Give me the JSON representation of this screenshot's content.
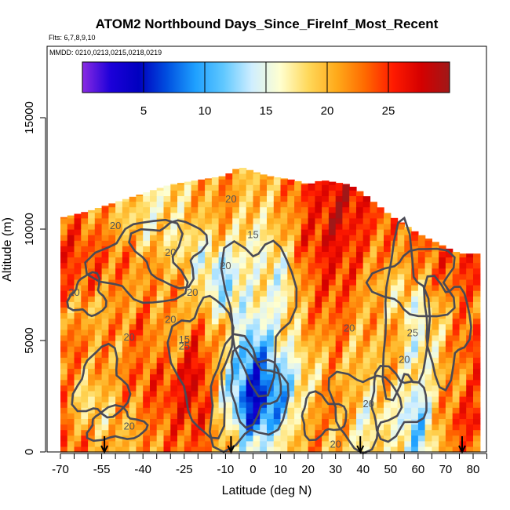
{
  "chart_data": {
    "type": "heatmap",
    "title": "ATOM2 Northbound Days_Since_FireInf_Most_Recent",
    "flights_label": "Flts: 6,7,8,9,10",
    "dates_label": "MMDD: 0210,0213,0215,0218,0219",
    "xlabel": "Latitude (deg N)",
    "ylabel": "Altitude (m)",
    "xlim": [
      -72,
      84
    ],
    "ylim": [
      0,
      17500
    ],
    "x_ticks": [
      "-70",
      "-55",
      "-40",
      "-25",
      "-10",
      "0",
      "10",
      "20",
      "30",
      "40",
      "50",
      "60",
      "70",
      "80"
    ],
    "x_ticks_values": [
      -70,
      -55,
      -40,
      -25,
      -10,
      0,
      10,
      20,
      30,
      40,
      50,
      60,
      70,
      80
    ],
    "y_ticks": [
      "0",
      "5000",
      "10000",
      "15000"
    ],
    "y_ticks_values": [
      0,
      5000,
      10000,
      15000
    ],
    "colorbar": {
      "range": [
        0,
        30
      ],
      "ticks": [
        "5",
        "10",
        "15",
        "20",
        "25"
      ],
      "tick_values": [
        5,
        10,
        15,
        20,
        25
      ],
      "colors": [
        "#8a2be2",
        "#1c00d9",
        "#0000bf",
        "#0050e0",
        "#1ea0ff",
        "#60c8ff",
        "#cfeeff",
        "#ffffd0",
        "#ffd85a",
        "#ffaa1a",
        "#ff6a00",
        "#ff1a00",
        "#d40000",
        "#a01818"
      ]
    },
    "contour_labels": [
      "20",
      "15",
      "20",
      "20",
      "20",
      "20",
      "25",
      "20",
      "15",
      "20",
      "20",
      "20",
      "25",
      "20",
      "20",
      "20",
      "20"
    ],
    "profile_markers_lat": [
      -54,
      -8,
      39,
      76
    ],
    "altitude_profile": {
      "lat": [
        -70,
        -60,
        -50,
        -40,
        -30,
        -20,
        -10,
        -5,
        0,
        5,
        10,
        15,
        20,
        25,
        30,
        35,
        40,
        50,
        60,
        70,
        75,
        80
      ],
      "top": [
        10500,
        10800,
        11200,
        11600,
        12000,
        12200,
        12400,
        12800,
        12600,
        12400,
        12300,
        12200,
        12000,
        12200,
        12100,
        12000,
        11600,
        10600,
        9800,
        9200,
        8900,
        8900
      ]
    },
    "field": {
      "lat": [
        -70,
        -60,
        -50,
        -40,
        -30,
        -20,
        -10,
        0,
        10,
        20,
        30,
        40,
        50,
        60,
        70,
        80
      ],
      "alt": [
        500,
        1500,
        2500,
        3500,
        4500,
        5500,
        6500,
        7500,
        8500,
        9500,
        10500,
        11500
      ],
      "values": [
        [
          24,
          22,
          20,
          21,
          23,
          24,
          20,
          13,
          17,
          22,
          20,
          17,
          19,
          12,
          22,
          24
        ],
        [
          24,
          18,
          19,
          22,
          24,
          26,
          18,
          5,
          12,
          21,
          22,
          16,
          17,
          11,
          23,
          26
        ],
        [
          23,
          17,
          21,
          23,
          25,
          27,
          15,
          4,
          10,
          19,
          23,
          18,
          19,
          13,
          22,
          24
        ],
        [
          22,
          20,
          22,
          24,
          24,
          28,
          16,
          6,
          11,
          18,
          21,
          19,
          20,
          17,
          20,
          23
        ],
        [
          24,
          22,
          20,
          23,
          21,
          26,
          18,
          8,
          15,
          19,
          22,
          19,
          21,
          14,
          21,
          25
        ],
        [
          23,
          21,
          22,
          24,
          20,
          23,
          20,
          12,
          17,
          21,
          23,
          20,
          22,
          16,
          20,
          24
        ],
        [
          22,
          19,
          21,
          22,
          21,
          20,
          15,
          16,
          16,
          22,
          24,
          21,
          19,
          15,
          21,
          23
        ],
        [
          24,
          23,
          22,
          21,
          22,
          18,
          12,
          18,
          15,
          23,
          25,
          22,
          18,
          20,
          23,
          24
        ],
        [
          25,
          24,
          23,
          22,
          20,
          16,
          14,
          17,
          16,
          24,
          26,
          23,
          21,
          22,
          24,
          25
        ],
        [
          25,
          24,
          22,
          19,
          18,
          17,
          19,
          16,
          19,
          25,
          27,
          24,
          22,
          23,
          24,
          0
        ],
        [
          24,
          22,
          20,
          17,
          18,
          20,
          21,
          18,
          20,
          24,
          28,
          25,
          23,
          0,
          0,
          0
        ],
        [
          0,
          0,
          0,
          0,
          0,
          20,
          22,
          19,
          21,
          25,
          27,
          0,
          0,
          0,
          0,
          0
        ]
      ]
    }
  }
}
